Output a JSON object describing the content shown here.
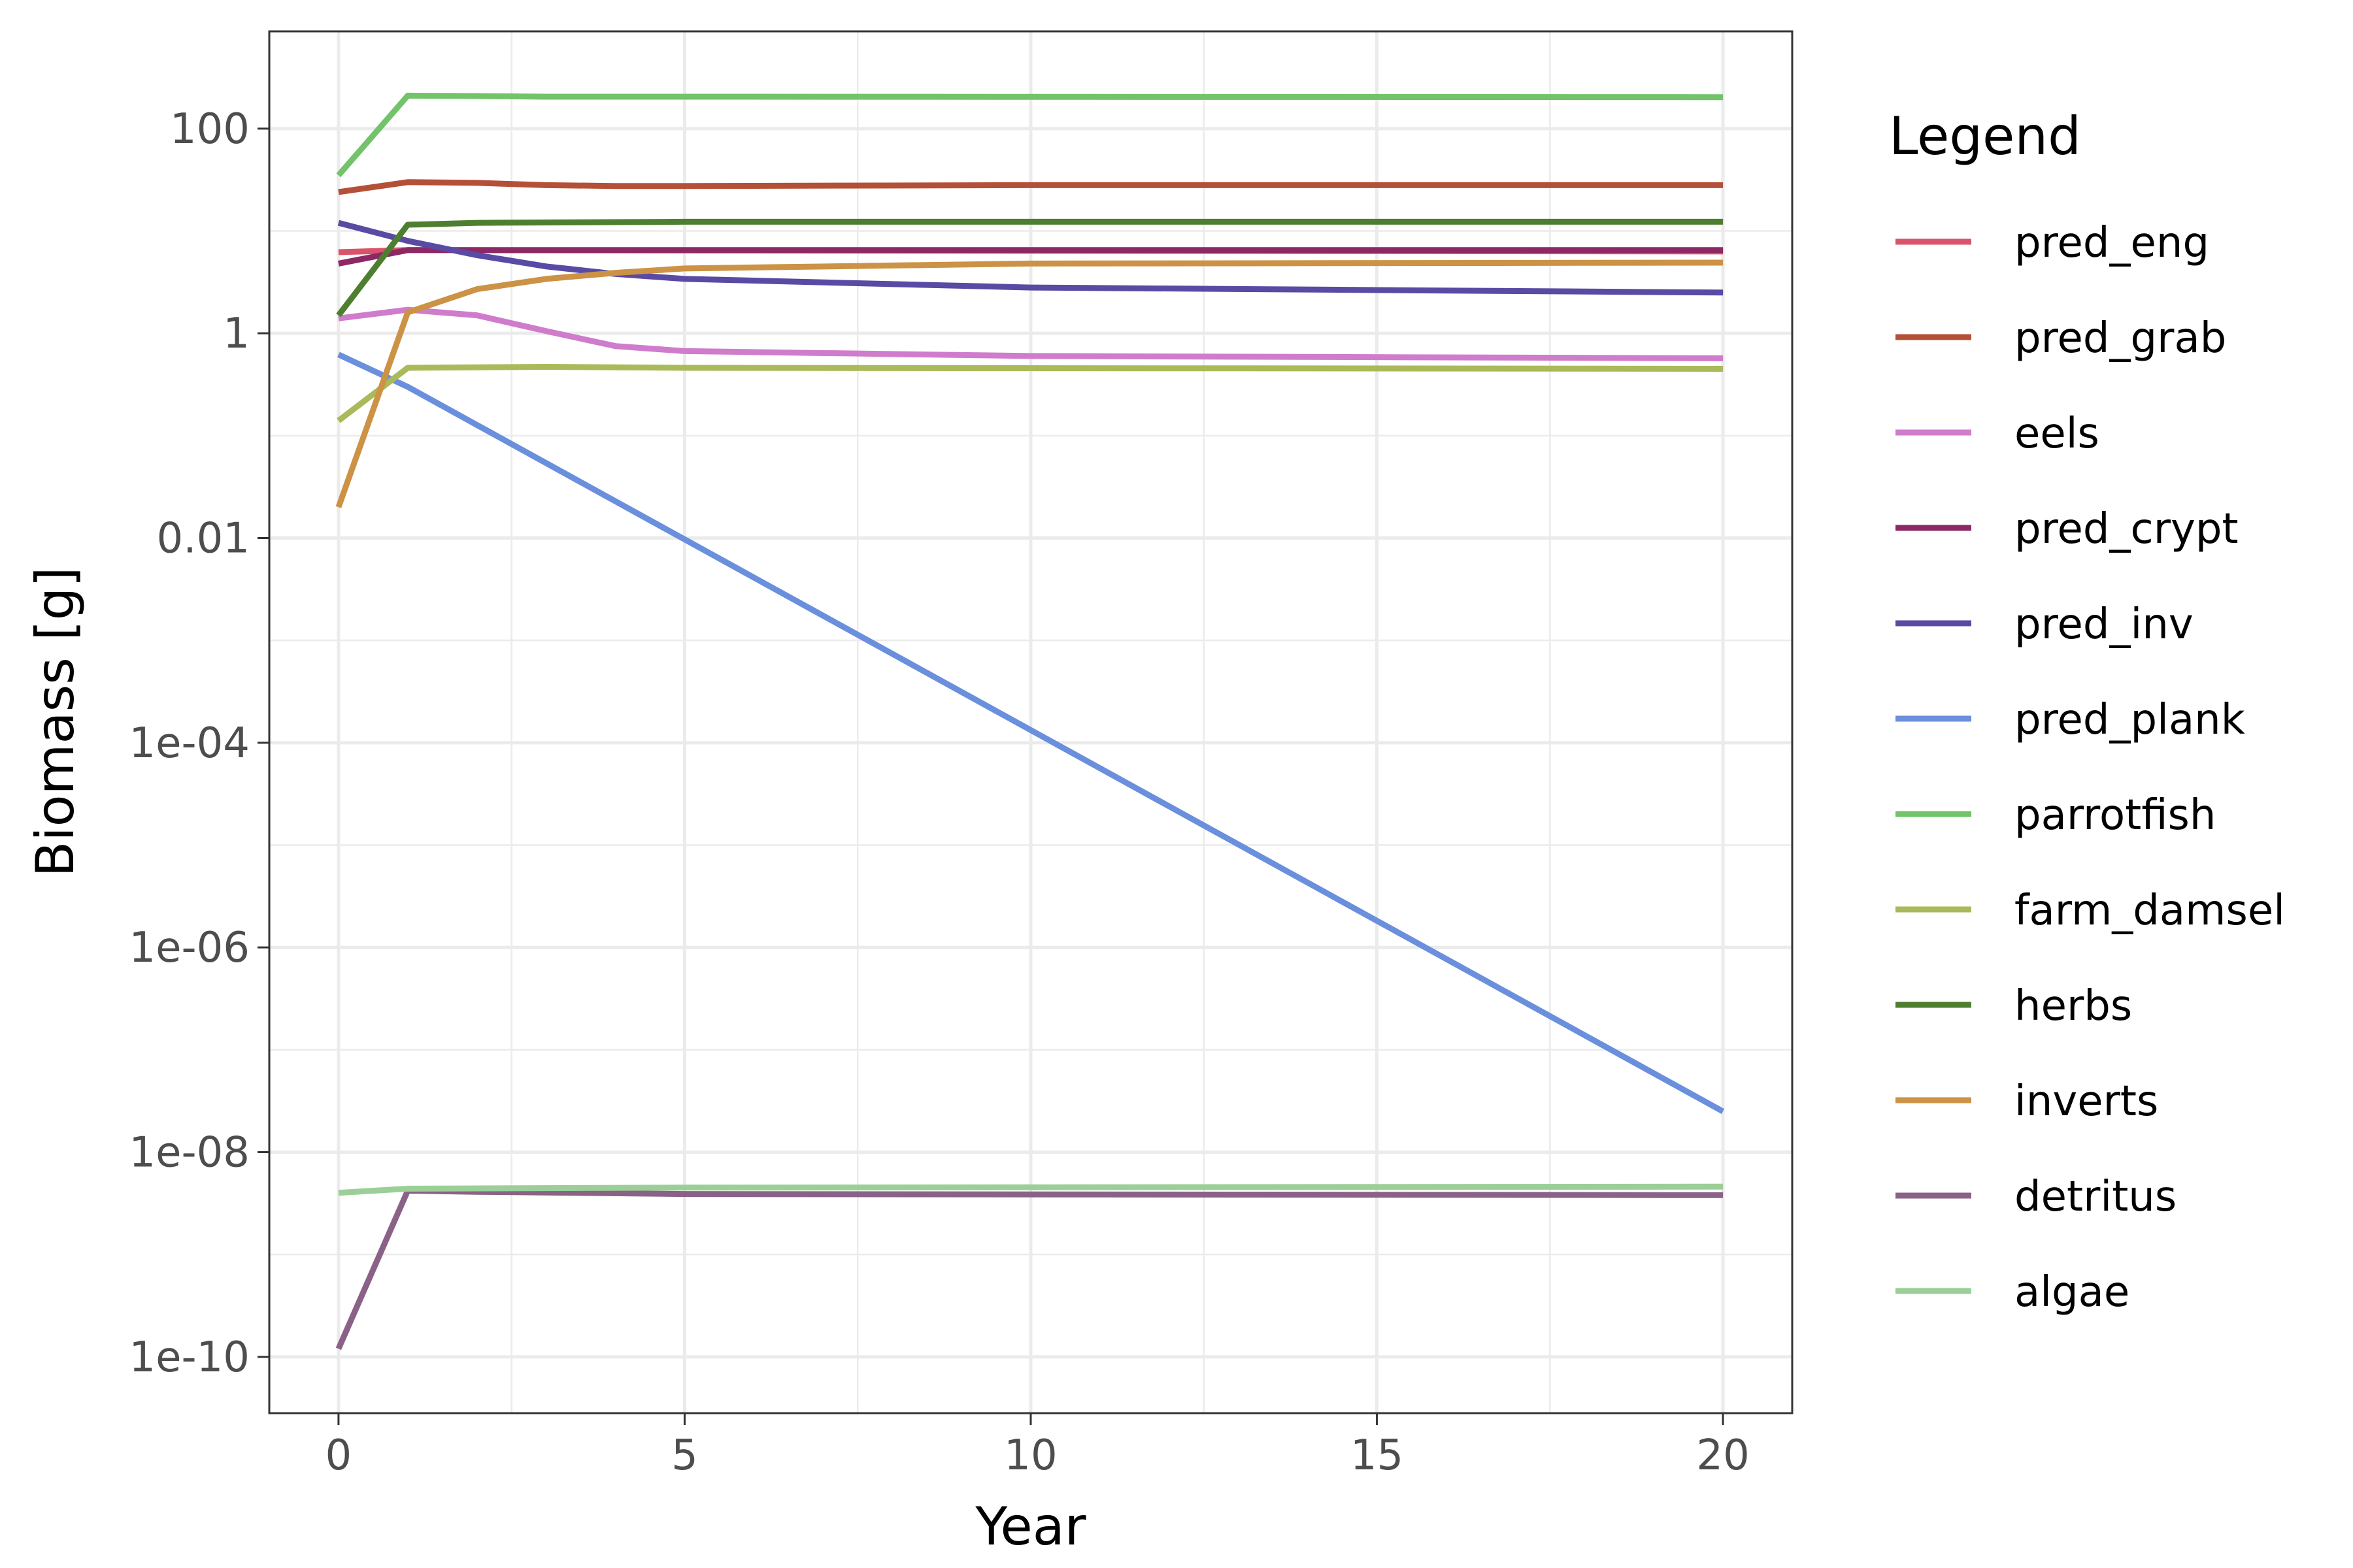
{
  "chart_data": {
    "type": "line",
    "title": "",
    "xlabel": "Year",
    "ylabel": "Biomass [g]",
    "xlim": [
      -1,
      21
    ],
    "ylim_log10": [
      -10.55,
      2.95
    ],
    "y_scale": "log10",
    "grid": true,
    "legend_position": "right",
    "legend_title": "Legend",
    "x_ticks": [
      0,
      5,
      10,
      15,
      20
    ],
    "x_tick_labels": [
      "0",
      "5",
      "10",
      "15",
      "20"
    ],
    "y_ticks": [
      100,
      1,
      0.01,
      0.0001,
      1e-06,
      1e-08,
      1e-10
    ],
    "y_tick_labels": [
      "100",
      "1",
      "0.01",
      "1e-04",
      "1e-06",
      "1e-08",
      "1e-10"
    ],
    "series": [
      {
        "name": "pred_eng",
        "color": "#d9546a",
        "points": [
          [
            0,
            6.2
          ],
          [
            1,
            6.5
          ],
          [
            20,
            6.3
          ]
        ]
      },
      {
        "name": "pred_grab",
        "color": "#b55038",
        "points": [
          [
            0,
            24
          ],
          [
            1,
            30
          ],
          [
            2,
            29.5
          ],
          [
            3,
            28
          ],
          [
            4,
            27.5
          ],
          [
            5,
            27.5
          ],
          [
            10,
            28
          ],
          [
            20,
            28
          ]
        ]
      },
      {
        "name": "eels",
        "color": "#d07ccc",
        "points": [
          [
            0,
            1.4
          ],
          [
            1,
            1.7
          ],
          [
            2,
            1.5
          ],
          [
            3,
            1.05
          ],
          [
            4,
            0.75
          ],
          [
            5,
            0.67
          ],
          [
            10,
            0.6
          ],
          [
            20,
            0.57
          ]
        ]
      },
      {
        "name": "pred_crypt",
        "color": "#8e2865",
        "points": [
          [
            0,
            4.8
          ],
          [
            1,
            6.5
          ],
          [
            2,
            6.5
          ],
          [
            5,
            6.5
          ],
          [
            20,
            6.5
          ]
        ]
      },
      {
        "name": "pred_inv",
        "color": "#5a4aa4",
        "points": [
          [
            0,
            12
          ],
          [
            1,
            8
          ],
          [
            2,
            5.8
          ],
          [
            3,
            4.5
          ],
          [
            4,
            3.8
          ],
          [
            5,
            3.4
          ],
          [
            10,
            2.8
          ],
          [
            20,
            2.5
          ]
        ]
      },
      {
        "name": "pred_plank",
        "color": "#6a8fdc",
        "points": [
          [
            0,
            0.62
          ],
          [
            1,
            0.3
          ],
          [
            20,
            2.5e-08
          ]
        ]
      },
      {
        "name": "parrotfish",
        "color": "#72c36a",
        "points": [
          [
            0,
            35
          ],
          [
            1,
            210
          ],
          [
            2,
            208
          ],
          [
            3,
            205
          ],
          [
            5,
            205
          ],
          [
            20,
            203
          ]
        ]
      },
      {
        "name": "farm_damsel",
        "color": "#a8ba5a",
        "points": [
          [
            0,
            0.14
          ],
          [
            1,
            0.46
          ],
          [
            3,
            0.47
          ],
          [
            5,
            0.46
          ],
          [
            20,
            0.45
          ]
        ]
      },
      {
        "name": "herbs",
        "color": "#4e7e30",
        "points": [
          [
            0,
            1.5
          ],
          [
            1,
            11.5
          ],
          [
            2,
            12
          ],
          [
            5,
            12.3
          ],
          [
            20,
            12.3
          ]
        ]
      },
      {
        "name": "inverts",
        "color": "#cc9245",
        "points": [
          [
            0,
            0.02
          ],
          [
            1,
            1.6
          ],
          [
            2,
            2.7
          ],
          [
            3,
            3.4
          ],
          [
            4,
            3.9
          ],
          [
            5,
            4.3
          ],
          [
            10,
            4.8
          ],
          [
            20,
            4.9
          ]
        ]
      },
      {
        "name": "detritus",
        "color": "#8a6287",
        "points": [
          [
            0,
            1.2e-10
          ],
          [
            1,
            4.2e-09
          ],
          [
            2,
            4.1e-09
          ],
          [
            5,
            3.9e-09
          ],
          [
            20,
            3.8e-09
          ]
        ]
      },
      {
        "name": "algae",
        "color": "#9ccf98",
        "points": [
          [
            0,
            4e-09
          ],
          [
            1,
            4.4e-09
          ],
          [
            5,
            4.5e-09
          ],
          [
            20,
            4.6e-09
          ]
        ]
      }
    ]
  }
}
